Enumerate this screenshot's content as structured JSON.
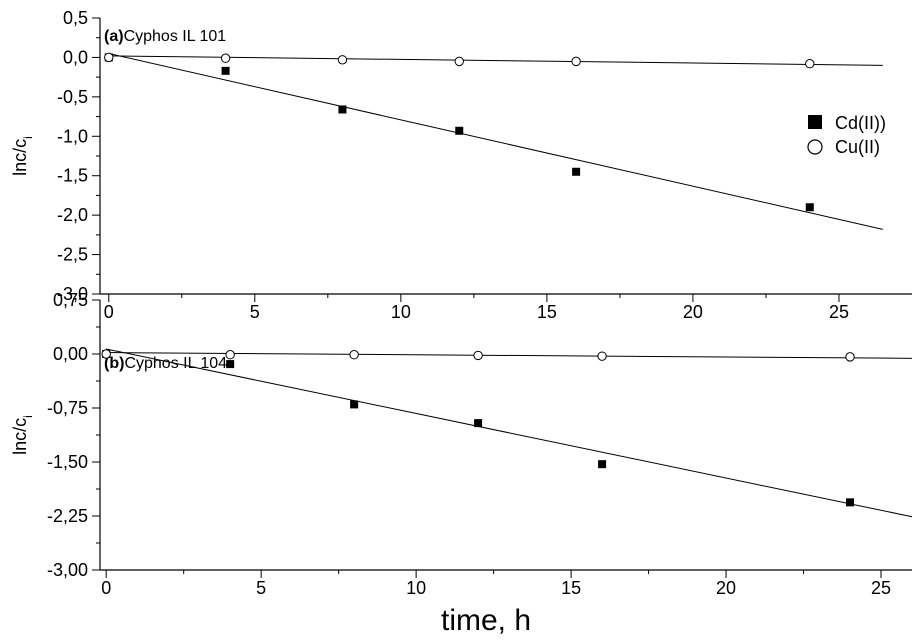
{
  "chart_data": [
    {
      "type": "scatter",
      "panel_label": "(a)",
      "panel_title": "Cyphos IL 101",
      "ylabel_main": "lnc/c",
      "ylabel_sub": "i",
      "xlabel": "",
      "xlim": [
        -0.3,
        27.5
      ],
      "ylim": [
        -3.0,
        0.5
      ],
      "xticks": [
        0,
        5,
        10,
        15,
        20,
        25
      ],
      "xtick_labels": [
        "0",
        "5",
        "10",
        "15",
        "20",
        "25"
      ],
      "yticks": [
        0.5,
        0.0,
        -0.5,
        -1.0,
        -1.5,
        -2.0,
        -2.5,
        -3.0
      ],
      "ytick_labels": [
        "0,5",
        "0,0",
        "-0,5",
        "-1,0",
        "-1,5",
        "-2,0",
        "-2,5",
        "-3,0"
      ],
      "legend": {
        "position": "right",
        "entries": [
          "Cd(II))",
          "Cu(II)"
        ]
      },
      "series": [
        {
          "name": "Cd(II))",
          "marker": "filled-square",
          "x": [
            0,
            4,
            8,
            12,
            16,
            24
          ],
          "y": [
            0.0,
            -0.17,
            -0.66,
            -0.93,
            -1.45,
            -1.9
          ],
          "fit": [
            [
              0,
              0.05
            ],
            [
              26.5,
              -2.18
            ]
          ]
        },
        {
          "name": "Cu(II)",
          "marker": "open-circle",
          "x": [
            0,
            4,
            8,
            12,
            16,
            24
          ],
          "y": [
            0.0,
            -0.01,
            -0.03,
            -0.05,
            -0.05,
            -0.08
          ],
          "fit": [
            [
              0,
              0.02
            ],
            [
              26.5,
              -0.1
            ]
          ]
        }
      ]
    },
    {
      "type": "scatter",
      "panel_label": "(b)",
      "panel_title": "Cyphos IL 104",
      "ylabel_main": "lnc/c",
      "ylabel_sub": "i",
      "xlabel": "time, h",
      "xlim": [
        -0.2,
        26.0
      ],
      "ylim": [
        -3.0,
        0.75
      ],
      "xticks": [
        0,
        5,
        10,
        15,
        20,
        25
      ],
      "xtick_labels": [
        "0",
        "5",
        "10",
        "15",
        "20",
        "25"
      ],
      "yticks": [
        0.75,
        0.0,
        -0.75,
        -1.5,
        -2.25,
        -3.0
      ],
      "ytick_labels": [
        "0,75",
        "0,00",
        "-0,75",
        "-1,50",
        "-2,25",
        "-3,00"
      ],
      "series": [
        {
          "name": "Cd(II))",
          "marker": "filled-square",
          "x": [
            0,
            4,
            8,
            12,
            16,
            24
          ],
          "y": [
            0.0,
            -0.14,
            -0.7,
            -0.96,
            -1.53,
            -2.06
          ],
          "fit": [
            [
              0,
              0.07
            ],
            [
              26.0,
              -2.26
            ]
          ]
        },
        {
          "name": "Cu(II)",
          "marker": "open-circle",
          "x": [
            0,
            4,
            8,
            12,
            16,
            24
          ],
          "y": [
            0.0,
            -0.01,
            -0.01,
            -0.02,
            -0.03,
            -0.04
          ],
          "fit": [
            [
              0,
              0.02
            ],
            [
              26.0,
              -0.06
            ]
          ]
        }
      ]
    }
  ]
}
